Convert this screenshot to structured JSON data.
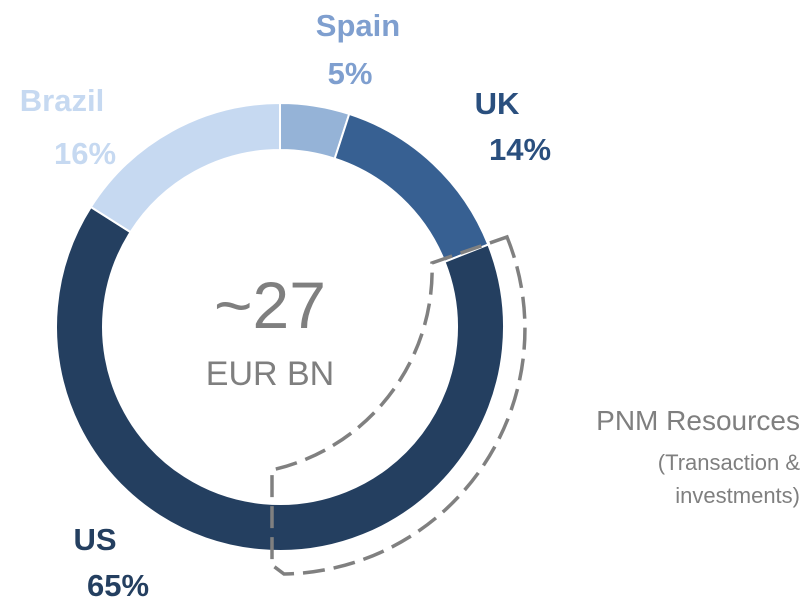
{
  "chart_data": {
    "type": "donut",
    "categories": [
      "Spain",
      "UK",
      "US",
      "Brazil"
    ],
    "values": [
      5,
      14,
      65,
      16
    ],
    "value_labels": [
      "5%",
      "14%",
      "65%",
      "16%"
    ],
    "colors": [
      "#95b3d7",
      "#376092",
      "#243f60",
      "#c6d9f1"
    ],
    "label_colors": [
      "#7f9fcf",
      "#2a4f7e",
      "#243f60",
      "#c6d9f1"
    ],
    "center_value": "~27",
    "center_unit": "EUR BN",
    "annotation": {
      "title": "PNM Resources",
      "lines": [
        "(Transaction &",
        "investments)"
      ]
    }
  }
}
